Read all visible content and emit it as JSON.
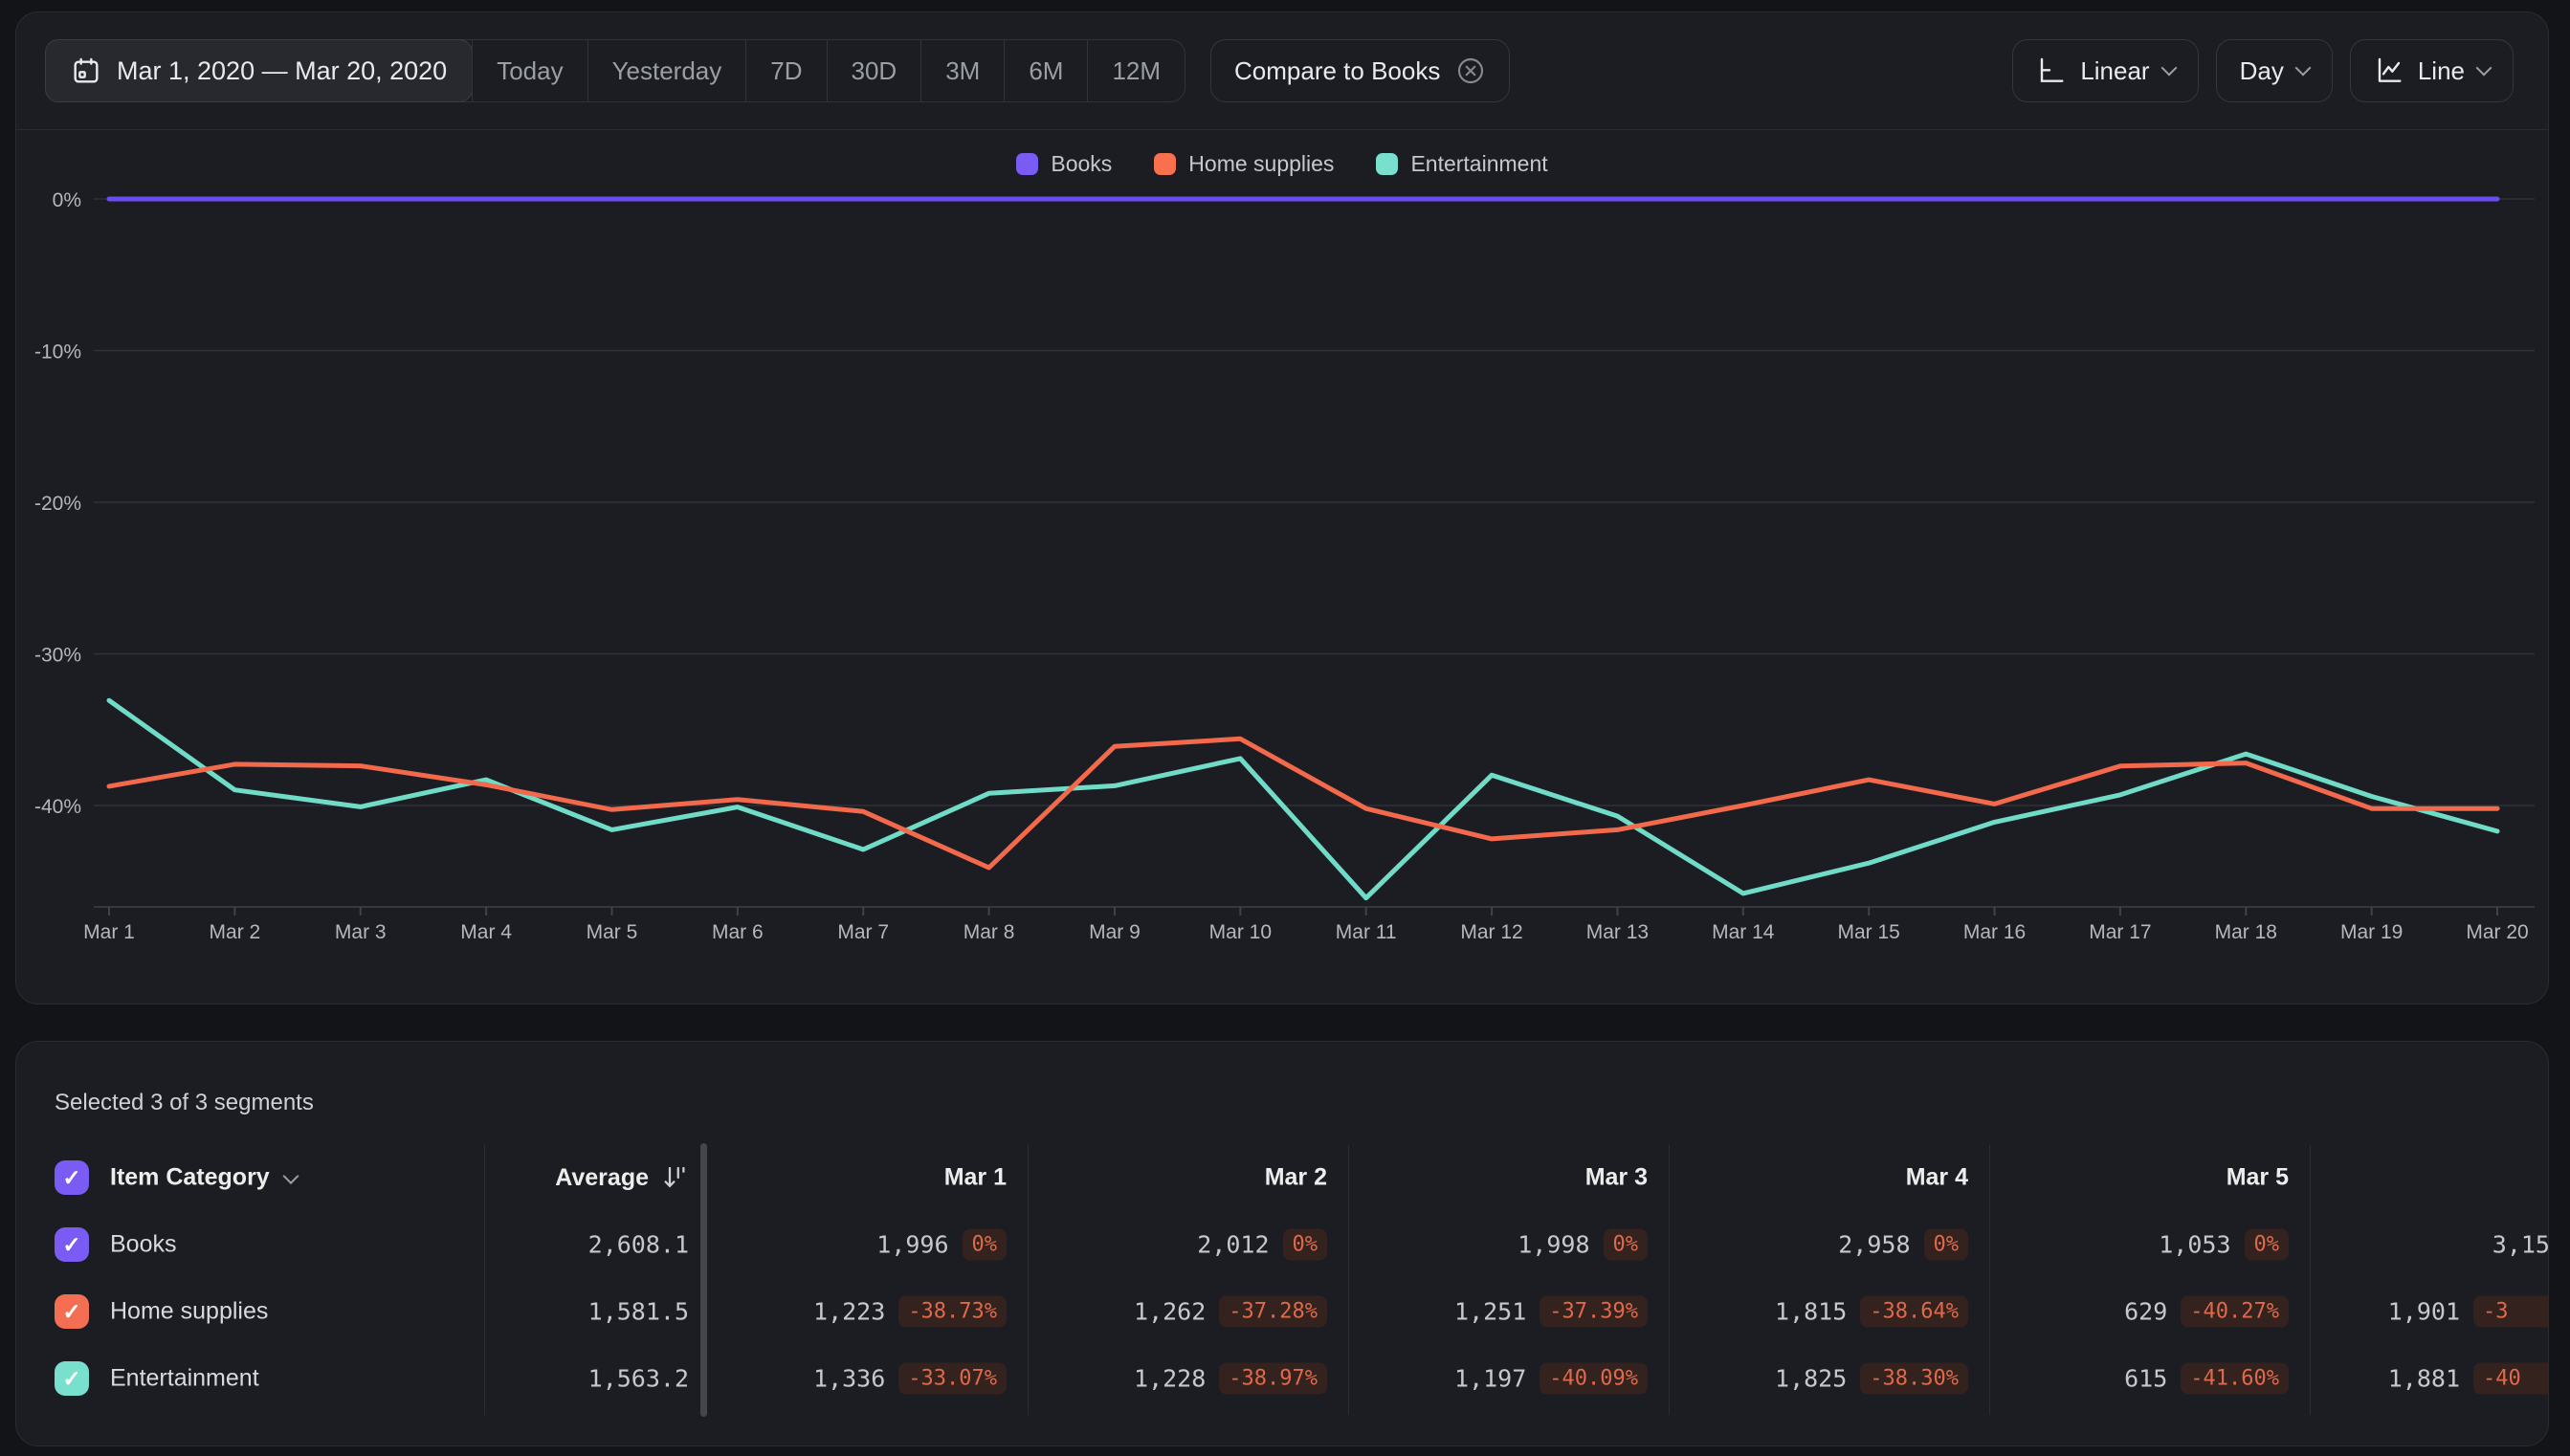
{
  "toolbar": {
    "date_range": "Mar 1, 2020 — Mar 20, 2020",
    "presets": [
      "Today",
      "Yesterday",
      "7D",
      "30D",
      "3M",
      "6M",
      "12M"
    ],
    "compare_chip": "Compare to Books",
    "scale_button": "Linear",
    "granularity_button": "Day",
    "chart_type_button": "Line"
  },
  "chart_data": {
    "type": "line",
    "x": [
      "Mar 1",
      "Mar 2",
      "Mar 3",
      "Mar 4",
      "Mar 5",
      "Mar 6",
      "Mar 7",
      "Mar 8",
      "Mar 9",
      "Mar 10",
      "Mar 11",
      "Mar 12",
      "Mar 13",
      "Mar 14",
      "Mar 15",
      "Mar 16",
      "Mar 17",
      "Mar 18",
      "Mar 19",
      "Mar 20"
    ],
    "y_tick_labels": [
      "0%",
      "-10%",
      "-20%",
      "-30%",
      "-40%"
    ],
    "y_ticks": [
      0,
      -10,
      -20,
      -30,
      -40
    ],
    "ylim": [
      -46.4,
      1.5
    ],
    "grid": "horizontal",
    "legend_position": "top",
    "series": [
      {
        "name": "Entertainment",
        "color": "#70dcc8",
        "values": [
          -33.07,
          -38.97,
          -40.09,
          -38.3,
          -41.6,
          -40.1,
          -42.9,
          -39.2,
          -38.7,
          -36.9,
          -46.1,
          -38.0,
          -40.7,
          -45.8,
          -43.8,
          -41.1,
          -39.3,
          -36.6,
          -39.4,
          -41.7
        ]
      },
      {
        "name": "Home supplies",
        "color": "#f2694b",
        "values": [
          -38.73,
          -37.28,
          -37.39,
          -38.64,
          -40.27,
          -39.6,
          -40.4,
          -44.1,
          -36.1,
          -35.6,
          -40.2,
          -42.2,
          -41.6,
          -40.0,
          -38.3,
          -39.9,
          -37.4,
          -37.2,
          -40.2,
          -40.2
        ]
      },
      {
        "name": "Books",
        "color": "#6b4bf2",
        "values": [
          0,
          0,
          0,
          0,
          0,
          0,
          0,
          0,
          0,
          0,
          0,
          0,
          0,
          0,
          0,
          0,
          0,
          0,
          0,
          0
        ]
      }
    ],
    "legend_order": [
      "Books",
      "Home supplies",
      "Entertainment"
    ],
    "legend_colors": {
      "Books": "#7a5cf5",
      "Home supplies": "#f9704f",
      "Entertainment": "#79e0cd"
    }
  },
  "table": {
    "summary": "Selected 3 of 3 segments",
    "category_header": "Item Category",
    "average_header": "Average",
    "date_columns": [
      "Mar 1",
      "Mar 2",
      "Mar 3",
      "Mar 4",
      "Mar 5"
    ],
    "rows": [
      {
        "label": "Books",
        "checkbox_color": "#7a5cf5",
        "average": "2,608.1",
        "cells": [
          [
            "1,996",
            "0%"
          ],
          [
            "2,012",
            "0%"
          ],
          [
            "1,998",
            "0%"
          ],
          [
            "2,958",
            "0%"
          ],
          [
            "1,053",
            "0%"
          ]
        ],
        "clipped_cell": {
          "value": "3,15",
          "pct": ""
        }
      },
      {
        "label": "Home supplies",
        "checkbox_color": "#f36e52",
        "average": "1,581.5",
        "cells": [
          [
            "1,223",
            "-38.73%"
          ],
          [
            "1,262",
            "-37.28%"
          ],
          [
            "1,251",
            "-37.39%"
          ],
          [
            "1,815",
            "-38.64%"
          ],
          [
            "629",
            "-40.27%"
          ]
        ],
        "clipped_cell": {
          "value": "1,901",
          "pct": "-3"
        }
      },
      {
        "label": "Entertainment",
        "checkbox_color": "#79e0cd",
        "average": "1,563.2",
        "cells": [
          [
            "1,336",
            "-33.07%"
          ],
          [
            "1,228",
            "-38.97%"
          ],
          [
            "1,197",
            "-40.09%"
          ],
          [
            "1,825",
            "-38.30%"
          ],
          [
            "615",
            "-41.60%"
          ]
        ],
        "clipped_cell": {
          "value": "1,881",
          "pct": "-40"
        }
      }
    ]
  }
}
